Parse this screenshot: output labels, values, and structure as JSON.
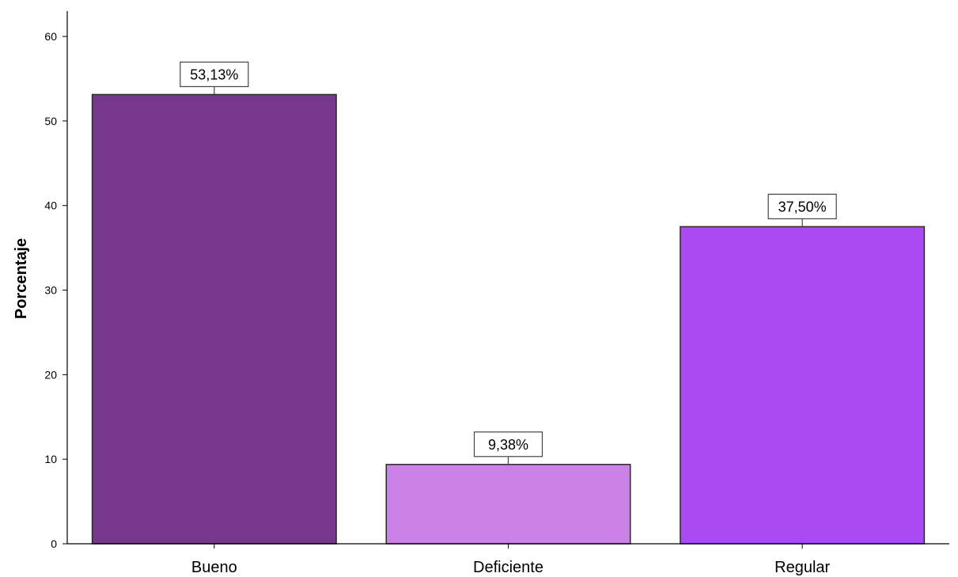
{
  "chart_data": {
    "type": "bar",
    "title": "",
    "xlabel": "",
    "ylabel": "Porcentaje",
    "ylim": [
      0,
      60
    ],
    "yticks": [
      0,
      10,
      20,
      30,
      40,
      50,
      60
    ],
    "grid": false,
    "categories": [
      "Bueno",
      "Deficiente",
      "Regular"
    ],
    "values": [
      53.13,
      9.38,
      37.5
    ],
    "data_labels": [
      "53,13%",
      "9,38%",
      "37,50%"
    ],
    "colors": [
      "#76378c",
      "#cb81e6",
      "#a94af2"
    ]
  }
}
